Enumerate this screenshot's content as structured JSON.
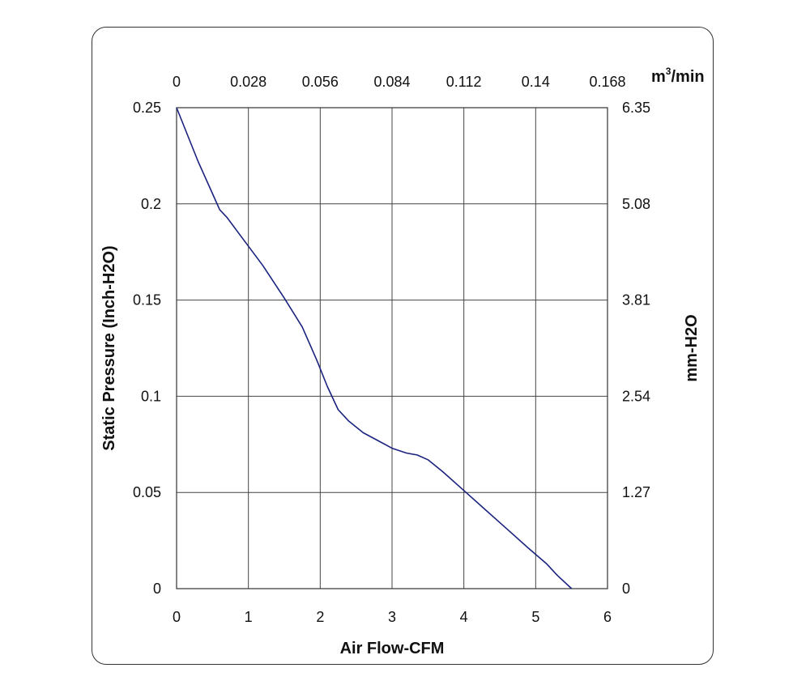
{
  "chart_data": {
    "type": "line",
    "title": "",
    "xlabel": "Air Flow-CFM",
    "ylabel": "Static Pressure (Inch-H2O)",
    "y2label": "mm-H2O",
    "x2unit_base": "m",
    "x2unit_sup": "3",
    "x2unit_tail": "/min",
    "xlim": [
      0,
      6
    ],
    "ylim": [
      0,
      0.25
    ],
    "x_ticks": [
      "0",
      "1",
      "2",
      "3",
      "4",
      "5",
      "6"
    ],
    "y_ticks": [
      "0",
      "0.05",
      "0.1",
      "0.15",
      "0.2",
      "0.25"
    ],
    "x2_ticks": [
      "0",
      "0.028",
      "0.056",
      "0.084",
      "0.112",
      "0.14",
      "0.168"
    ],
    "y2_ticks": [
      "0",
      "1.27",
      "2.54",
      "3.81",
      "5.08",
      "6.35"
    ],
    "grid": true,
    "line_color": "#1a237e",
    "series": [
      {
        "x": [
          0,
          0.3,
          0.6,
          0.7,
          0.9,
          1.2,
          1.5,
          1.75,
          1.95,
          2.1,
          2.25,
          2.4,
          2.6,
          2.8,
          3.0,
          3.2,
          3.35,
          3.5,
          3.7,
          4.0,
          4.3,
          4.6,
          4.9,
          5.15,
          5.3,
          5.5
        ],
        "y": [
          0.25,
          0.222,
          0.197,
          0.193,
          0.183,
          0.168,
          0.151,
          0.136,
          0.119,
          0.105,
          0.093,
          0.087,
          0.081,
          0.077,
          0.073,
          0.0705,
          0.0695,
          0.067,
          0.061,
          0.051,
          0.041,
          0.031,
          0.021,
          0.013,
          0.007,
          0
        ]
      }
    ]
  }
}
